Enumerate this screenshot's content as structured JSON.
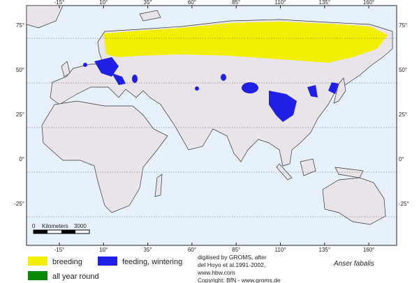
{
  "map": {
    "longitude_labels": [
      "-15°",
      "10°",
      "35°",
      "60°",
      "85°",
      "110°",
      "135°",
      "160°"
    ],
    "latitude_labels": [
      "75°",
      "50°",
      "25°",
      "0°",
      "-25°"
    ],
    "scale": {
      "start": "0",
      "unit": "Kilometers",
      "end": "3000"
    }
  },
  "legend": [
    "breeding",
    "feeding, wintering",
    "all year round"
  ],
  "credits": [
    "digitised by GROMS, after",
    "del Hoyo et al.1991-2002,",
    "www.hbw.com",
    "Copyright: BfN - www.groms.de"
  ],
  "species": "Anser fabalis"
}
